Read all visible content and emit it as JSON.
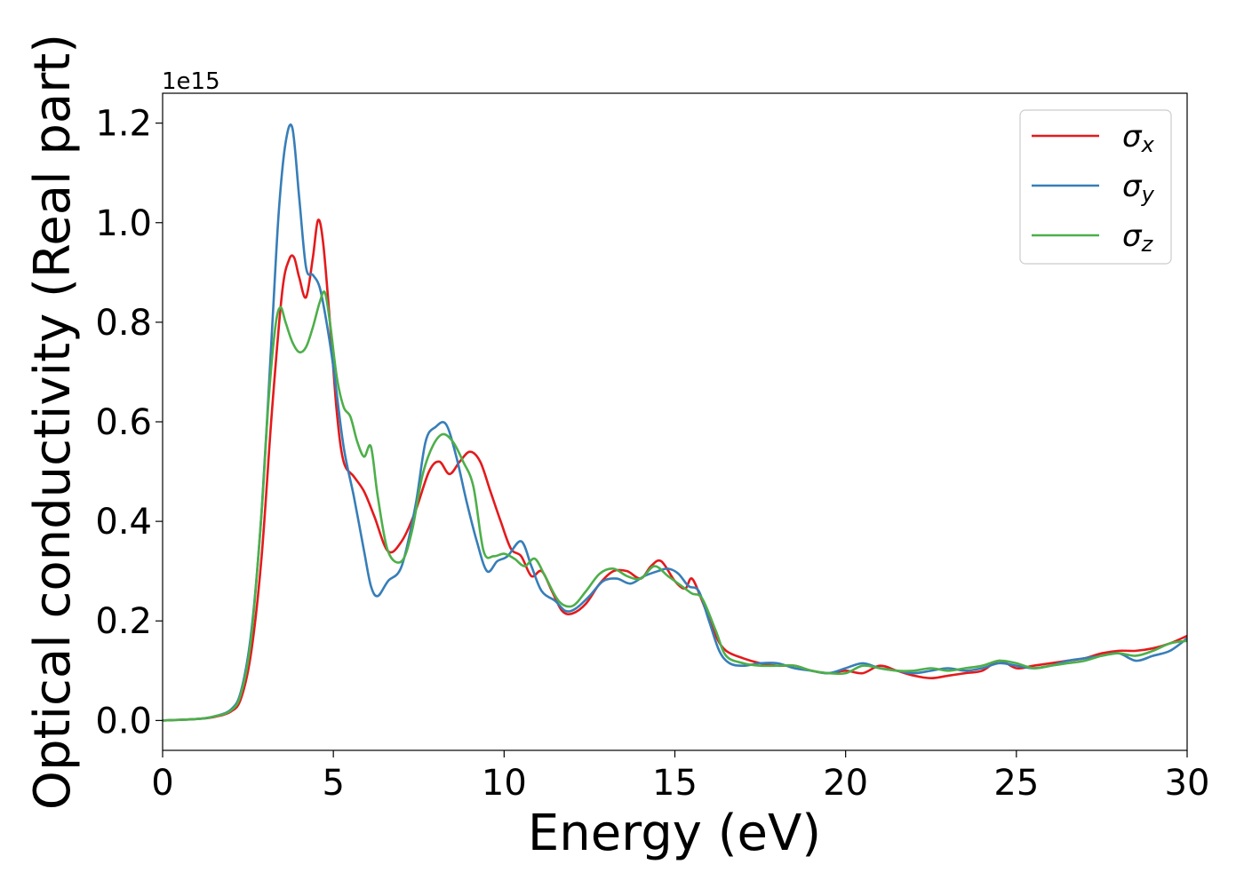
{
  "chart_data": {
    "type": "line",
    "title": "",
    "xlabel": "Energy (eV)",
    "ylabel": "Optical conductivity (Real part)",
    "y_offset_label": "1e15",
    "xlim": [
      0,
      30
    ],
    "ylim": [
      -0.06,
      1.26
    ],
    "xticks": [
      0,
      5,
      10,
      15,
      20,
      25,
      30
    ],
    "yticks": [
      0.0,
      0.2,
      0.4,
      0.6,
      0.8,
      1.0,
      1.2
    ],
    "xtick_labels": [
      "0",
      "5",
      "10",
      "15",
      "20",
      "25",
      "30"
    ],
    "ytick_labels": [
      "0.0",
      "0.2",
      "0.4",
      "0.6",
      "0.8",
      "1.0",
      "1.2"
    ],
    "grid": false,
    "legend_position": "top-right",
    "series": [
      {
        "name": "σx",
        "symbol": "σ",
        "subscript": "x",
        "color": "#e41a1c",
        "x": [
          0,
          1,
          1.5,
          2,
          2.3,
          2.6,
          2.9,
          3.2,
          3.5,
          3.7,
          3.85,
          4.0,
          4.2,
          4.4,
          4.55,
          4.7,
          4.9,
          5.1,
          5.3,
          5.6,
          5.9,
          6.2,
          6.6,
          7.0,
          7.4,
          7.8,
          8.1,
          8.4,
          8.7,
          9.0,
          9.3,
          9.6,
          9.9,
          10.2,
          10.5,
          10.8,
          11.1,
          11.4,
          11.7,
          12.0,
          12.4,
          12.8,
          13.2,
          13.6,
          14.0,
          14.3,
          14.6,
          15.0,
          15.3,
          15.5,
          15.8,
          16.2,
          16.5,
          17.0,
          17.5,
          18.0,
          18.5,
          19.0,
          19.5,
          20.0,
          20.5,
          21.0,
          21.5,
          22.0,
          22.5,
          23.0,
          23.5,
          24.0,
          24.5,
          25.0,
          25.5,
          26.0,
          26.5,
          27.0,
          27.5,
          28.0,
          28.5,
          29.0,
          29.5,
          30.0
        ],
        "y": [
          0.0,
          0.003,
          0.007,
          0.018,
          0.045,
          0.14,
          0.33,
          0.62,
          0.86,
          0.925,
          0.93,
          0.89,
          0.85,
          0.93,
          1.005,
          0.96,
          0.8,
          0.62,
          0.52,
          0.49,
          0.46,
          0.41,
          0.34,
          0.36,
          0.42,
          0.5,
          0.52,
          0.495,
          0.52,
          0.54,
          0.52,
          0.46,
          0.4,
          0.345,
          0.33,
          0.29,
          0.3,
          0.26,
          0.22,
          0.215,
          0.235,
          0.275,
          0.3,
          0.3,
          0.285,
          0.31,
          0.32,
          0.28,
          0.265,
          0.285,
          0.24,
          0.17,
          0.14,
          0.125,
          0.115,
          0.11,
          0.11,
          0.1,
          0.095,
          0.1,
          0.095,
          0.11,
          0.1,
          0.09,
          0.085,
          0.09,
          0.095,
          0.1,
          0.12,
          0.105,
          0.11,
          0.115,
          0.12,
          0.125,
          0.135,
          0.14,
          0.14,
          0.145,
          0.155,
          0.17
        ]
      },
      {
        "name": "σy",
        "symbol": "σ",
        "subscript": "y",
        "color": "#377eb8",
        "x": [
          0,
          1,
          1.5,
          2,
          2.3,
          2.6,
          2.9,
          3.2,
          3.4,
          3.6,
          3.8,
          4.0,
          4.2,
          4.4,
          4.6,
          4.8,
          5.0,
          5.3,
          5.6,
          5.9,
          6.1,
          6.3,
          6.6,
          7.0,
          7.4,
          7.7,
          8.0,
          8.3,
          8.6,
          8.9,
          9.2,
          9.5,
          9.8,
          10.1,
          10.5,
          10.8,
          11.1,
          11.5,
          11.8,
          12.1,
          12.5,
          12.9,
          13.3,
          13.7,
          14.1,
          14.5,
          14.8,
          15.1,
          15.4,
          15.7,
          16.0,
          16.3,
          16.6,
          17.0,
          17.5,
          18.0,
          18.5,
          19.0,
          19.5,
          20.0,
          20.5,
          21.0,
          21.5,
          22.0,
          22.5,
          23.0,
          23.5,
          24.0,
          24.5,
          25.0,
          25.5,
          26.0,
          26.5,
          27.0,
          27.5,
          28.0,
          28.5,
          29.0,
          29.5,
          30.0
        ],
        "y": [
          0.0,
          0.003,
          0.008,
          0.022,
          0.06,
          0.18,
          0.42,
          0.78,
          1.02,
          1.16,
          1.19,
          1.05,
          0.91,
          0.895,
          0.87,
          0.8,
          0.71,
          0.55,
          0.45,
          0.34,
          0.27,
          0.25,
          0.28,
          0.31,
          0.43,
          0.56,
          0.59,
          0.595,
          0.53,
          0.44,
          0.36,
          0.3,
          0.32,
          0.33,
          0.36,
          0.31,
          0.26,
          0.24,
          0.22,
          0.225,
          0.25,
          0.28,
          0.285,
          0.275,
          0.29,
          0.3,
          0.305,
          0.295,
          0.27,
          0.26,
          0.2,
          0.14,
          0.115,
          0.11,
          0.115,
          0.115,
          0.105,
          0.1,
          0.095,
          0.105,
          0.115,
          0.105,
          0.1,
          0.095,
          0.1,
          0.105,
          0.1,
          0.105,
          0.115,
          0.11,
          0.105,
          0.11,
          0.12,
          0.125,
          0.13,
          0.135,
          0.12,
          0.13,
          0.14,
          0.165
        ]
      },
      {
        "name": "σz",
        "symbol": "σ",
        "subscript": "z",
        "color": "#4daf4a",
        "x": [
          0,
          1,
          1.5,
          2,
          2.3,
          2.6,
          2.9,
          3.1,
          3.3,
          3.45,
          3.6,
          3.8,
          4.0,
          4.2,
          4.4,
          4.6,
          4.75,
          4.9,
          5.1,
          5.3,
          5.5,
          5.7,
          5.9,
          6.1,
          6.3,
          6.6,
          7.0,
          7.3,
          7.6,
          7.9,
          8.2,
          8.5,
          8.8,
          9.1,
          9.4,
          9.7,
          10.0,
          10.3,
          10.6,
          10.9,
          11.2,
          11.6,
          12.0,
          12.4,
          12.8,
          13.2,
          13.6,
          14.0,
          14.4,
          14.8,
          15.2,
          15.5,
          15.8,
          16.2,
          16.5,
          17.0,
          17.5,
          18.0,
          18.5,
          19.0,
          19.5,
          20.0,
          20.5,
          21.0,
          21.5,
          22.0,
          22.5,
          23.0,
          23.5,
          24.0,
          24.5,
          25.0,
          25.5,
          26.0,
          26.5,
          27.0,
          27.5,
          28.0,
          28.5,
          29.0,
          29.5,
          30.0
        ],
        "y": [
          0.0,
          0.003,
          0.008,
          0.02,
          0.055,
          0.17,
          0.42,
          0.64,
          0.79,
          0.83,
          0.8,
          0.76,
          0.74,
          0.75,
          0.79,
          0.84,
          0.86,
          0.8,
          0.69,
          0.63,
          0.61,
          0.56,
          0.53,
          0.55,
          0.45,
          0.34,
          0.32,
          0.38,
          0.49,
          0.55,
          0.575,
          0.56,
          0.52,
          0.47,
          0.34,
          0.33,
          0.335,
          0.325,
          0.31,
          0.325,
          0.29,
          0.24,
          0.23,
          0.26,
          0.295,
          0.305,
          0.29,
          0.285,
          0.31,
          0.29,
          0.27,
          0.255,
          0.245,
          0.18,
          0.13,
          0.115,
          0.11,
          0.11,
          0.11,
          0.1,
          0.095,
          0.095,
          0.11,
          0.105,
          0.1,
          0.1,
          0.105,
          0.1,
          0.105,
          0.11,
          0.12,
          0.115,
          0.105,
          0.11,
          0.115,
          0.12,
          0.13,
          0.135,
          0.13,
          0.14,
          0.155,
          0.16
        ]
      }
    ]
  }
}
